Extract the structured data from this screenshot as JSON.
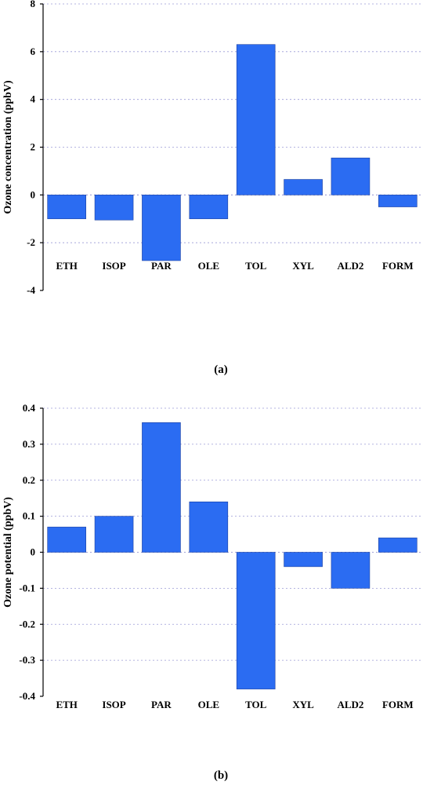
{
  "chart_data": [
    {
      "type": "bar",
      "panel_label": "(a)",
      "ylabel": "Ozone concentration (ppbV)",
      "ylim": [
        -4,
        8
      ],
      "yticks": [
        -4,
        -2,
        0,
        2,
        4,
        6,
        8
      ],
      "ytick_labels": [
        "-4",
        "-2",
        "0",
        "2",
        "4",
        "6",
        "8"
      ],
      "categories": [
        "ETH",
        "ISOP",
        "PAR",
        "OLE",
        "TOL",
        "XYL",
        "ALD2",
        "FORM"
      ],
      "values": [
        -1.0,
        -1.05,
        -2.75,
        -1.0,
        6.3,
        0.65,
        1.55,
        -0.5
      ],
      "grid": "horizontal dashed",
      "bar_color": "#2b6cf2"
    },
    {
      "type": "bar",
      "panel_label": "(b)",
      "ylabel": "Ozone potential (ppbV)",
      "ylim": [
        -0.4,
        0.4
      ],
      "yticks": [
        -0.4,
        -0.3,
        -0.2,
        -0.1,
        0,
        0.1,
        0.2,
        0.3,
        0.4
      ],
      "ytick_labels": [
        "-0.4",
        "-0.3",
        "-0.2",
        "-0.1",
        "0",
        "0.1",
        "0.2",
        "0.3",
        "0.4"
      ],
      "categories": [
        "ETH",
        "ISOP",
        "PAR",
        "OLE",
        "TOL",
        "XYL",
        "ALD2",
        "FORM"
      ],
      "values": [
        0.07,
        0.1,
        0.36,
        0.14,
        -0.38,
        -0.04,
        -0.1,
        0.04
      ],
      "grid": "horizontal dashed",
      "bar_color": "#2b6cf2"
    }
  ]
}
